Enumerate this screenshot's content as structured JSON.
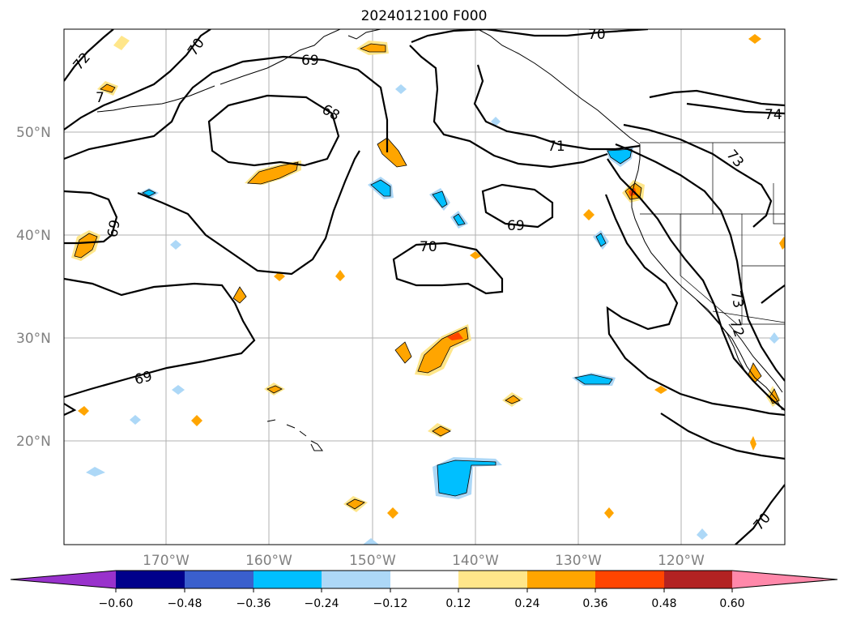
{
  "title": "2024012100 F000",
  "lat_labels": [
    "50°N",
    "40°N",
    "30°N",
    "20°N"
  ],
  "lon_labels": [
    "170°W",
    "160°W",
    "150°W",
    "140°W",
    "130°W",
    "120°W"
  ],
  "contour_labels": [
    "72",
    "70",
    "69",
    "68",
    "70",
    "71",
    "74",
    "73",
    "69",
    "69",
    "70",
    "69",
    "73",
    "72",
    "70",
    "7"
  ],
  "colorbar": {
    "ticks": [
      "−0.60",
      "−0.48",
      "−0.36",
      "−0.24",
      "−0.12",
      "0.12",
      "0.24",
      "0.36",
      "0.48",
      "0.60"
    ],
    "colors": [
      "#9932cc",
      "#00008b",
      "#3a5fcd",
      "#00bfff",
      "#add8f7",
      "#ffffff",
      "#ffe68a",
      "#ffa500",
      "#ff4500",
      "#b22222",
      "#ff88aa"
    ]
  },
  "shading_colors": {
    "light_pos": "#ffe68a",
    "mid_pos": "#ffa500",
    "high_pos": "#ff4500",
    "light_neg": "#add8f7",
    "mid_neg": "#00bfff"
  }
}
